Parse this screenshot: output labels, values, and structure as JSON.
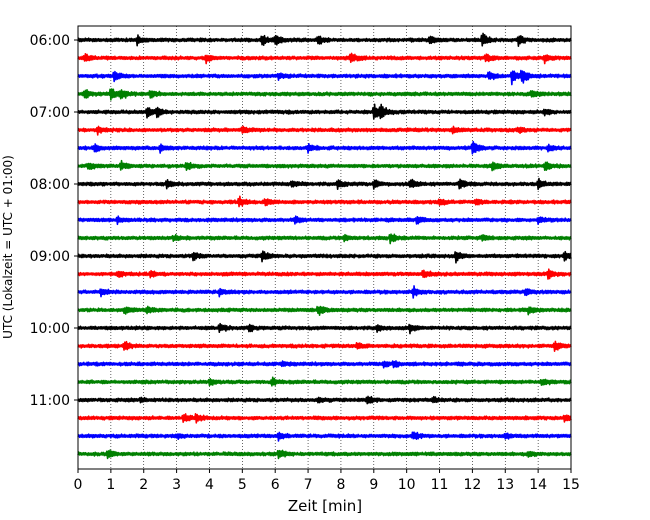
{
  "chart_data": {
    "type": "line",
    "title": "",
    "xlabel": "Zeit  [min]",
    "ylabel": "UTC (Lokalzeit = UTC + 01:00)",
    "xlim": [
      0,
      15
    ],
    "x_ticks": [
      0,
      1,
      2,
      3,
      4,
      5,
      6,
      7,
      8,
      9,
      10,
      11,
      12,
      13,
      14,
      15
    ],
    "y_ticks": [
      "06:00",
      "07:00",
      "08:00",
      "09:00",
      "10:00",
      "11:00"
    ],
    "trace_start": "06:00",
    "trace_interval_min": 15,
    "trace_count": 24,
    "grid": "vertical dotted at each minute",
    "legend": "none",
    "colors": [
      "#000000",
      "#ff0000",
      "#0000ff",
      "#008000"
    ],
    "series": [
      {
        "start": "06:00",
        "color": "#000000",
        "events": [
          [
            1.8,
            0.5
          ],
          [
            5.6,
            0.7
          ],
          [
            6.0,
            0.6
          ],
          [
            7.3,
            0.5
          ],
          [
            10.7,
            0.5
          ],
          [
            12.3,
            0.8
          ],
          [
            13.4,
            0.6
          ]
        ]
      },
      {
        "start": "06:15",
        "color": "#ff0000",
        "events": [
          [
            0.2,
            0.4
          ],
          [
            3.9,
            0.4
          ],
          [
            8.3,
            0.7
          ],
          [
            12.4,
            0.4
          ],
          [
            14.2,
            0.4
          ]
        ]
      },
      {
        "start": "06:30",
        "color": "#0000ff",
        "events": [
          [
            1.1,
            0.5
          ],
          [
            6.1,
            0.4
          ],
          [
            12.5,
            0.5
          ],
          [
            13.2,
            0.9
          ],
          [
            13.5,
            1.0
          ]
        ]
      },
      {
        "start": "06:45",
        "color": "#008000",
        "events": [
          [
            0.2,
            0.5
          ],
          [
            1.0,
            0.9
          ],
          [
            1.3,
            0.6
          ],
          [
            2.2,
            0.5
          ],
          [
            13.8,
            0.5
          ]
        ]
      },
      {
        "start": "07:00",
        "color": "#000000",
        "events": [
          [
            2.1,
            0.7
          ],
          [
            2.4,
            0.6
          ],
          [
            9.0,
            1.0
          ],
          [
            9.2,
            0.8
          ],
          [
            14.2,
            0.4
          ]
        ]
      },
      {
        "start": "07:15",
        "color": "#ff0000",
        "events": [
          [
            0.6,
            0.4
          ],
          [
            5.0,
            0.4
          ],
          [
            11.4,
            0.3
          ],
          [
            13.4,
            0.3
          ]
        ]
      },
      {
        "start": "07:30",
        "color": "#0000ff",
        "events": [
          [
            0.5,
            0.4
          ],
          [
            2.5,
            0.4
          ],
          [
            7.0,
            0.5
          ],
          [
            12.0,
            0.8
          ],
          [
            14.3,
            0.4
          ]
        ]
      },
      {
        "start": "07:45",
        "color": "#008000",
        "events": [
          [
            0.3,
            0.4
          ],
          [
            1.3,
            0.5
          ],
          [
            3.3,
            0.4
          ],
          [
            12.6,
            0.5
          ],
          [
            14.2,
            0.6
          ]
        ]
      },
      {
        "start": "08:00",
        "color": "#000000",
        "events": [
          [
            2.7,
            0.5
          ],
          [
            6.5,
            0.4
          ],
          [
            7.9,
            0.6
          ],
          [
            9.0,
            0.5
          ],
          [
            10.1,
            0.6
          ],
          [
            11.6,
            0.6
          ],
          [
            14.0,
            0.5
          ]
        ]
      },
      {
        "start": "08:15",
        "color": "#ff0000",
        "events": [
          [
            4.9,
            0.6
          ],
          [
            5.7,
            0.4
          ],
          [
            11.0,
            0.4
          ],
          [
            12.1,
            0.3
          ]
        ]
      },
      {
        "start": "08:30",
        "color": "#0000ff",
        "events": [
          [
            1.2,
            0.4
          ],
          [
            6.6,
            0.4
          ],
          [
            10.3,
            0.4
          ],
          [
            14.0,
            0.4
          ]
        ]
      },
      {
        "start": "08:45",
        "color": "#008000",
        "events": [
          [
            2.9,
            0.4
          ],
          [
            8.1,
            0.4
          ],
          [
            9.5,
            0.6
          ],
          [
            12.3,
            0.3
          ]
        ]
      },
      {
        "start": "09:00",
        "color": "#000000",
        "events": [
          [
            3.5,
            0.5
          ],
          [
            5.6,
            0.7
          ],
          [
            11.5,
            0.6
          ],
          [
            14.8,
            0.6
          ]
        ]
      },
      {
        "start": "09:15",
        "color": "#ff0000",
        "events": [
          [
            1.2,
            0.4
          ],
          [
            2.2,
            0.4
          ],
          [
            10.5,
            0.4
          ],
          [
            14.3,
            0.5
          ]
        ]
      },
      {
        "start": "09:30",
        "color": "#0000ff",
        "events": [
          [
            0.7,
            0.4
          ],
          [
            4.3,
            0.4
          ],
          [
            10.2,
            0.6
          ],
          [
            13.6,
            0.4
          ]
        ]
      },
      {
        "start": "09:45",
        "color": "#008000",
        "events": [
          [
            1.4,
            0.4
          ],
          [
            2.1,
            0.4
          ],
          [
            7.3,
            0.6
          ],
          [
            13.7,
            0.4
          ]
        ]
      },
      {
        "start": "10:00",
        "color": "#000000",
        "events": [
          [
            4.3,
            0.5
          ],
          [
            5.2,
            0.4
          ],
          [
            9.1,
            0.4
          ],
          [
            10.1,
            0.5
          ]
        ]
      },
      {
        "start": "10:15",
        "color": "#ff0000",
        "events": [
          [
            1.4,
            0.5
          ],
          [
            8.5,
            0.4
          ],
          [
            14.5,
            0.5
          ]
        ]
      },
      {
        "start": "10:30",
        "color": "#0000ff",
        "events": [
          [
            6.2,
            0.3
          ],
          [
            9.3,
            0.4
          ],
          [
            9.6,
            0.4
          ]
        ]
      },
      {
        "start": "10:45",
        "color": "#008000",
        "events": [
          [
            4.0,
            0.4
          ],
          [
            5.9,
            0.4
          ],
          [
            14.1,
            0.4
          ]
        ]
      },
      {
        "start": "11:00",
        "color": "#000000",
        "events": [
          [
            1.9,
            0.3
          ],
          [
            7.3,
            0.3
          ],
          [
            8.8,
            0.5
          ],
          [
            10.8,
            0.3
          ]
        ]
      },
      {
        "start": "11:15",
        "color": "#ff0000",
        "events": [
          [
            3.2,
            0.7
          ],
          [
            3.6,
            0.5
          ],
          [
            14.8,
            0.4
          ]
        ]
      },
      {
        "start": "11:30",
        "color": "#0000ff",
        "events": [
          [
            3.0,
            0.3
          ],
          [
            6.1,
            0.4
          ],
          [
            10.2,
            0.6
          ],
          [
            13.0,
            0.3
          ]
        ]
      },
      {
        "start": "11:45",
        "color": "#008000",
        "events": [
          [
            0.9,
            0.5
          ],
          [
            6.1,
            0.6
          ],
          [
            13.7,
            0.4
          ]
        ]
      }
    ]
  }
}
